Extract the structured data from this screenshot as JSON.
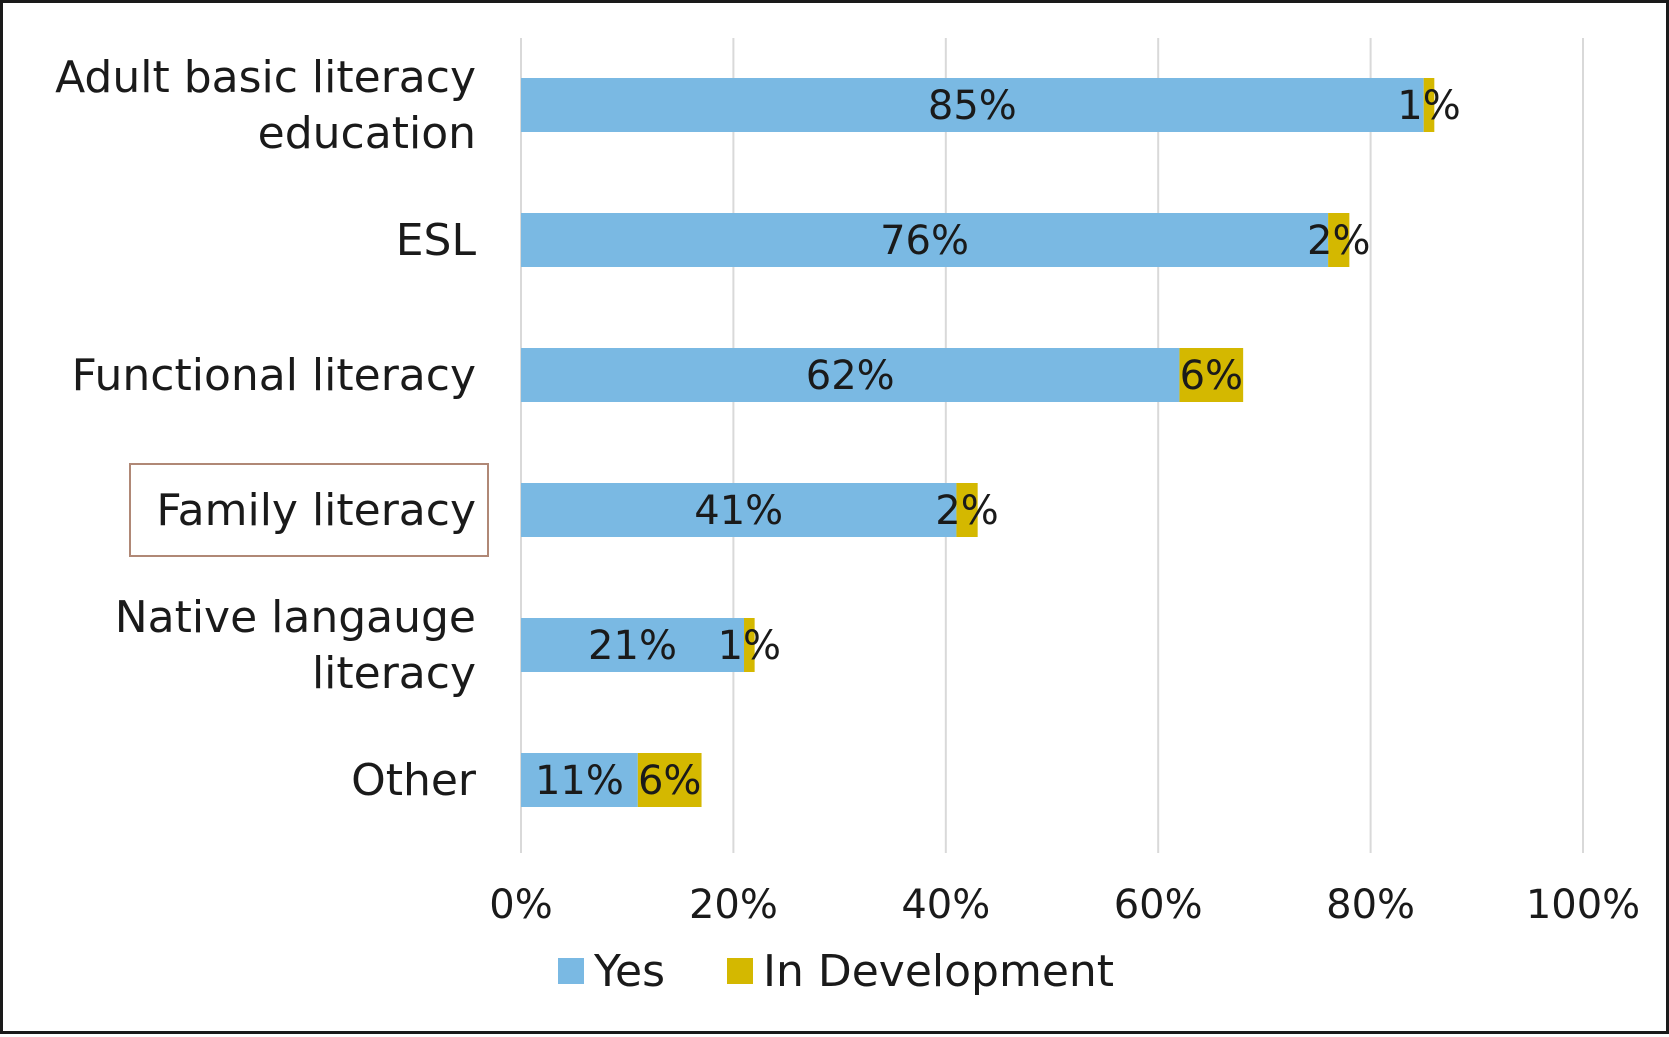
{
  "chart_data": {
    "type": "bar",
    "orientation": "horizontal",
    "stacked": true,
    "categories": [
      "Adult basic literacy education",
      "ESL",
      "Functional literacy",
      "Family literacy",
      "Native langauge literacy",
      "Other"
    ],
    "category_lines": [
      [
        "Adult basic literacy",
        "education"
      ],
      [
        "ESL"
      ],
      [
        "Functional literacy"
      ],
      [
        "Family literacy"
      ],
      [
        "Native langauge",
        "literacy"
      ],
      [
        "Other"
      ]
    ],
    "series": [
      {
        "name": "Yes",
        "color": "#7ab9e3",
        "values": [
          85,
          76,
          62,
          41,
          21,
          11
        ],
        "labels": [
          "85%",
          "76%",
          "62%",
          "41%",
          "21%",
          "11%"
        ]
      },
      {
        "name": "In Development",
        "color": "#d4b800",
        "values": [
          1,
          2,
          6,
          2,
          1,
          6
        ],
        "labels": [
          "1%",
          "2%",
          "6%",
          "2%",
          "1%",
          "6%"
        ]
      }
    ],
    "xlim": [
      0,
      100
    ],
    "xticks": [
      0,
      20,
      40,
      60,
      80,
      100
    ],
    "xtick_labels": [
      "0%",
      "20%",
      "40%",
      "60%",
      "80%",
      "100%"
    ],
    "grid": "vertical",
    "legend_position": "bottom",
    "highlighted_category": "Family literacy",
    "highlight_color": "#b08876",
    "title": "",
    "xlabel": "",
    "ylabel": ""
  }
}
